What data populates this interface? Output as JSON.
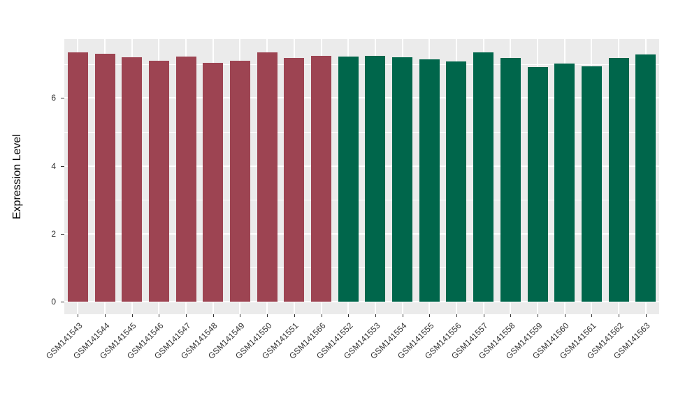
{
  "chart_data": {
    "type": "bar",
    "title": "",
    "xlabel": "",
    "ylabel": "Expression Level",
    "ylim": [
      0,
      7.7
    ],
    "yticks_major": [
      0,
      2,
      4,
      6
    ],
    "yticks_minor": [
      1,
      3,
      5,
      7
    ],
    "grid": "white major+minor gridlines on gray panel (ggplot style)",
    "legend_position": "none",
    "categories": [
      "GSM141543",
      "GSM141544",
      "GSM141545",
      "GSM141546",
      "GSM141547",
      "GSM141548",
      "GSM141549",
      "GSM141550",
      "GSM141551",
      "GSM141566",
      "GSM141552",
      "GSM141553",
      "GSM141554",
      "GSM141555",
      "GSM141556",
      "GSM141557",
      "GSM141558",
      "GSM141559",
      "GSM141560",
      "GSM141561",
      "GSM141562",
      "GSM141563"
    ],
    "values": [
      7.35,
      7.31,
      7.2,
      7.1,
      7.22,
      7.04,
      7.1,
      7.34,
      7.18,
      7.24,
      7.22,
      7.25,
      7.2,
      7.15,
      7.08,
      7.34,
      7.18,
      6.91,
      7.01,
      6.93,
      7.18,
      7.28
    ],
    "groups": [
      "group1",
      "group1",
      "group1",
      "group1",
      "group1",
      "group1",
      "group1",
      "group1",
      "group1",
      "group1",
      "group2",
      "group2",
      "group2",
      "group2",
      "group2",
      "group2",
      "group2",
      "group2",
      "group2",
      "group2",
      "group2",
      "group2"
    ],
    "colors": {
      "group1": "#9D4452",
      "group2": "#00664B"
    },
    "panel_background": "#EBEBEB",
    "gridline_color": "#FFFFFF",
    "axis_text_color": "#333333"
  }
}
